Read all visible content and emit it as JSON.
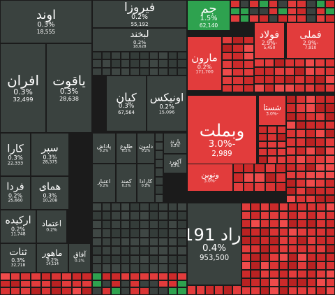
{
  "chart_data": {
    "type": "treemap",
    "cells": [
      {
        "name": "اوند",
        "change": "0.3%",
        "value": "18,555",
        "color": "gray"
      },
      {
        "name": "فیروزا",
        "change": "0.2%",
        "value": "55,192",
        "color": "gray"
      },
      {
        "name": "لبخند",
        "change": "0.2%",
        "value": "18,628",
        "color": "gray"
      },
      {
        "name": "افران",
        "change": "0.3%",
        "value": "32,499",
        "color": "gray"
      },
      {
        "name": "یاقوت",
        "change": "0.3%",
        "value": "28,638",
        "color": "gray"
      },
      {
        "name": "کیان",
        "change": "0.3%",
        "value": "67,564",
        "color": "gray"
      },
      {
        "name": "اونیکس",
        "change": "0.2%",
        "value": "15,096",
        "color": "gray"
      },
      {
        "name": "کارا",
        "change": "0.3%",
        "value": "22,333",
        "color": "gray"
      },
      {
        "name": "سپر",
        "change": "0.3%",
        "value": "28,375",
        "color": "gray"
      },
      {
        "name": "فردا",
        "change": "0.2%",
        "value": "25,660",
        "color": "gray"
      },
      {
        "name": "همای",
        "change": "0.3%",
        "value": "10,208",
        "color": "gray"
      },
      {
        "name": "ارکیده",
        "change": "0.2%",
        "value": "11,748",
        "color": "gray"
      },
      {
        "name": "اعتماد",
        "change": "0.2%",
        "value": "",
        "color": "gray"
      },
      {
        "name": "ماهور",
        "change": "0.2%",
        "value": "14,114",
        "color": "gray"
      },
      {
        "name": "ثنات",
        "change": "0.3%",
        "value": "32,718",
        "color": "gray"
      },
      {
        "name": "آفاق",
        "change": "0.2%",
        "value": "",
        "color": "gray"
      },
      {
        "name": "پاداش",
        "change": "0.2%",
        "value": "",
        "color": "gray"
      },
      {
        "name": "طلوع",
        "change": "0.2%",
        "value": "",
        "color": "gray"
      },
      {
        "name": "دامون",
        "change": "0.2%",
        "value": "",
        "color": "gray"
      },
      {
        "name": "پارند",
        "change": "0.2%",
        "value": "",
        "color": "gray"
      },
      {
        "name": "آکورد",
        "change": "0.2%",
        "value": "",
        "color": "gray"
      },
      {
        "name": "اعتبار",
        "change": "0.2%",
        "value": "",
        "color": "gray"
      },
      {
        "name": "کمند",
        "change": "0.2%",
        "value": "",
        "color": "gray"
      },
      {
        "name": "کارادا",
        "change": "0.2%",
        "value": "",
        "color": "gray"
      },
      {
        "name": "جم",
        "change": "1.5%",
        "value": "62,140",
        "color": "green"
      },
      {
        "name": "مارون",
        "change": "0.2%",
        "value": "171,700",
        "color": "red"
      },
      {
        "name": "فولاد",
        "change": "-2.9%",
        "value": "5,450",
        "color": "red"
      },
      {
        "name": "فملی",
        "change": "-2.9%",
        "value": "7,910",
        "color": "red"
      },
      {
        "name": "وبملت",
        "change": "-3.0%",
        "value": "2,989",
        "color": "red"
      },
      {
        "name": "ونوین",
        "change": "-3.0%",
        "value": "",
        "color": "red"
      },
      {
        "name": "شستا",
        "change": "-3.0%",
        "value": "",
        "color": "red"
      },
      {
        "name": "اراد 191",
        "change": "0.4%",
        "value": "953,500",
        "color": "gray"
      },
      {
        "name": "اراد 191",
        "change": "0.4%",
        "value": "953,500",
        "color": "gray"
      }
    ]
  }
}
